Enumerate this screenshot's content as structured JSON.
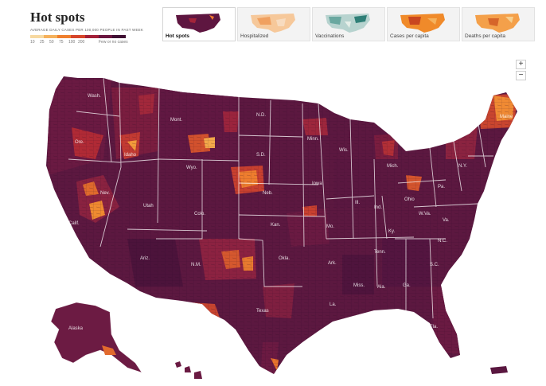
{
  "header": {
    "title": "Hot spots",
    "subtitle": "Average daily cases per 100,000 people in past week",
    "legend_ticks": [
      "10",
      "25",
      "50",
      "75",
      "100",
      "200"
    ],
    "legend_note": "Few or no cases",
    "legend_colors": [
      "#f7d9a1",
      "#f5b15c",
      "#ef7f2e",
      "#d6452a",
      "#a31f38",
      "#6b1640",
      "#3f0f33"
    ]
  },
  "tabs": [
    {
      "label": "Hot spots",
      "active": true
    },
    {
      "label": "Hospitalized",
      "active": false
    },
    {
      "label": "Vaccinations",
      "active": false
    },
    {
      "label": "Cases per capita",
      "active": false
    },
    {
      "label": "Deaths per capita",
      "active": false
    }
  ],
  "zoom": {
    "in": "+",
    "out": "−"
  },
  "map": {
    "state_labels": {
      "WA": "Wash.",
      "OR": "Ore.",
      "CA": "Calif.",
      "NV": "Nev.",
      "ID": "Idaho",
      "MT": "Mont.",
      "WY": "Wyo.",
      "UT": "Utah",
      "AZ": "Ariz.",
      "CO": "Colo.",
      "NM": "N.M.",
      "ND": "N.D.",
      "SD": "S.D.",
      "NE": "Neb.",
      "KS": "Kan.",
      "OK": "Okla.",
      "TX": "Texas",
      "MN": "Minn.",
      "IA": "Iowa",
      "MO": "Mo.",
      "AR": "Ark.",
      "LA": "La.",
      "WI": "Wis.",
      "IL": "Ill.",
      "MI": "Mich.",
      "IN": "Ind.",
      "OH": "Ohio",
      "KY": "Ky.",
      "TN": "Tenn.",
      "MS": "Miss.",
      "AL": "Ala.",
      "GA": "Ga.",
      "FL": "Fla.",
      "SC": "S.C.",
      "NC": "N.C.",
      "VA": "Va.",
      "WV": "W.Va.",
      "PA": "Pa.",
      "NY": "N.Y.",
      "ME": "Maine",
      "AK": "Alaska"
    }
  }
}
